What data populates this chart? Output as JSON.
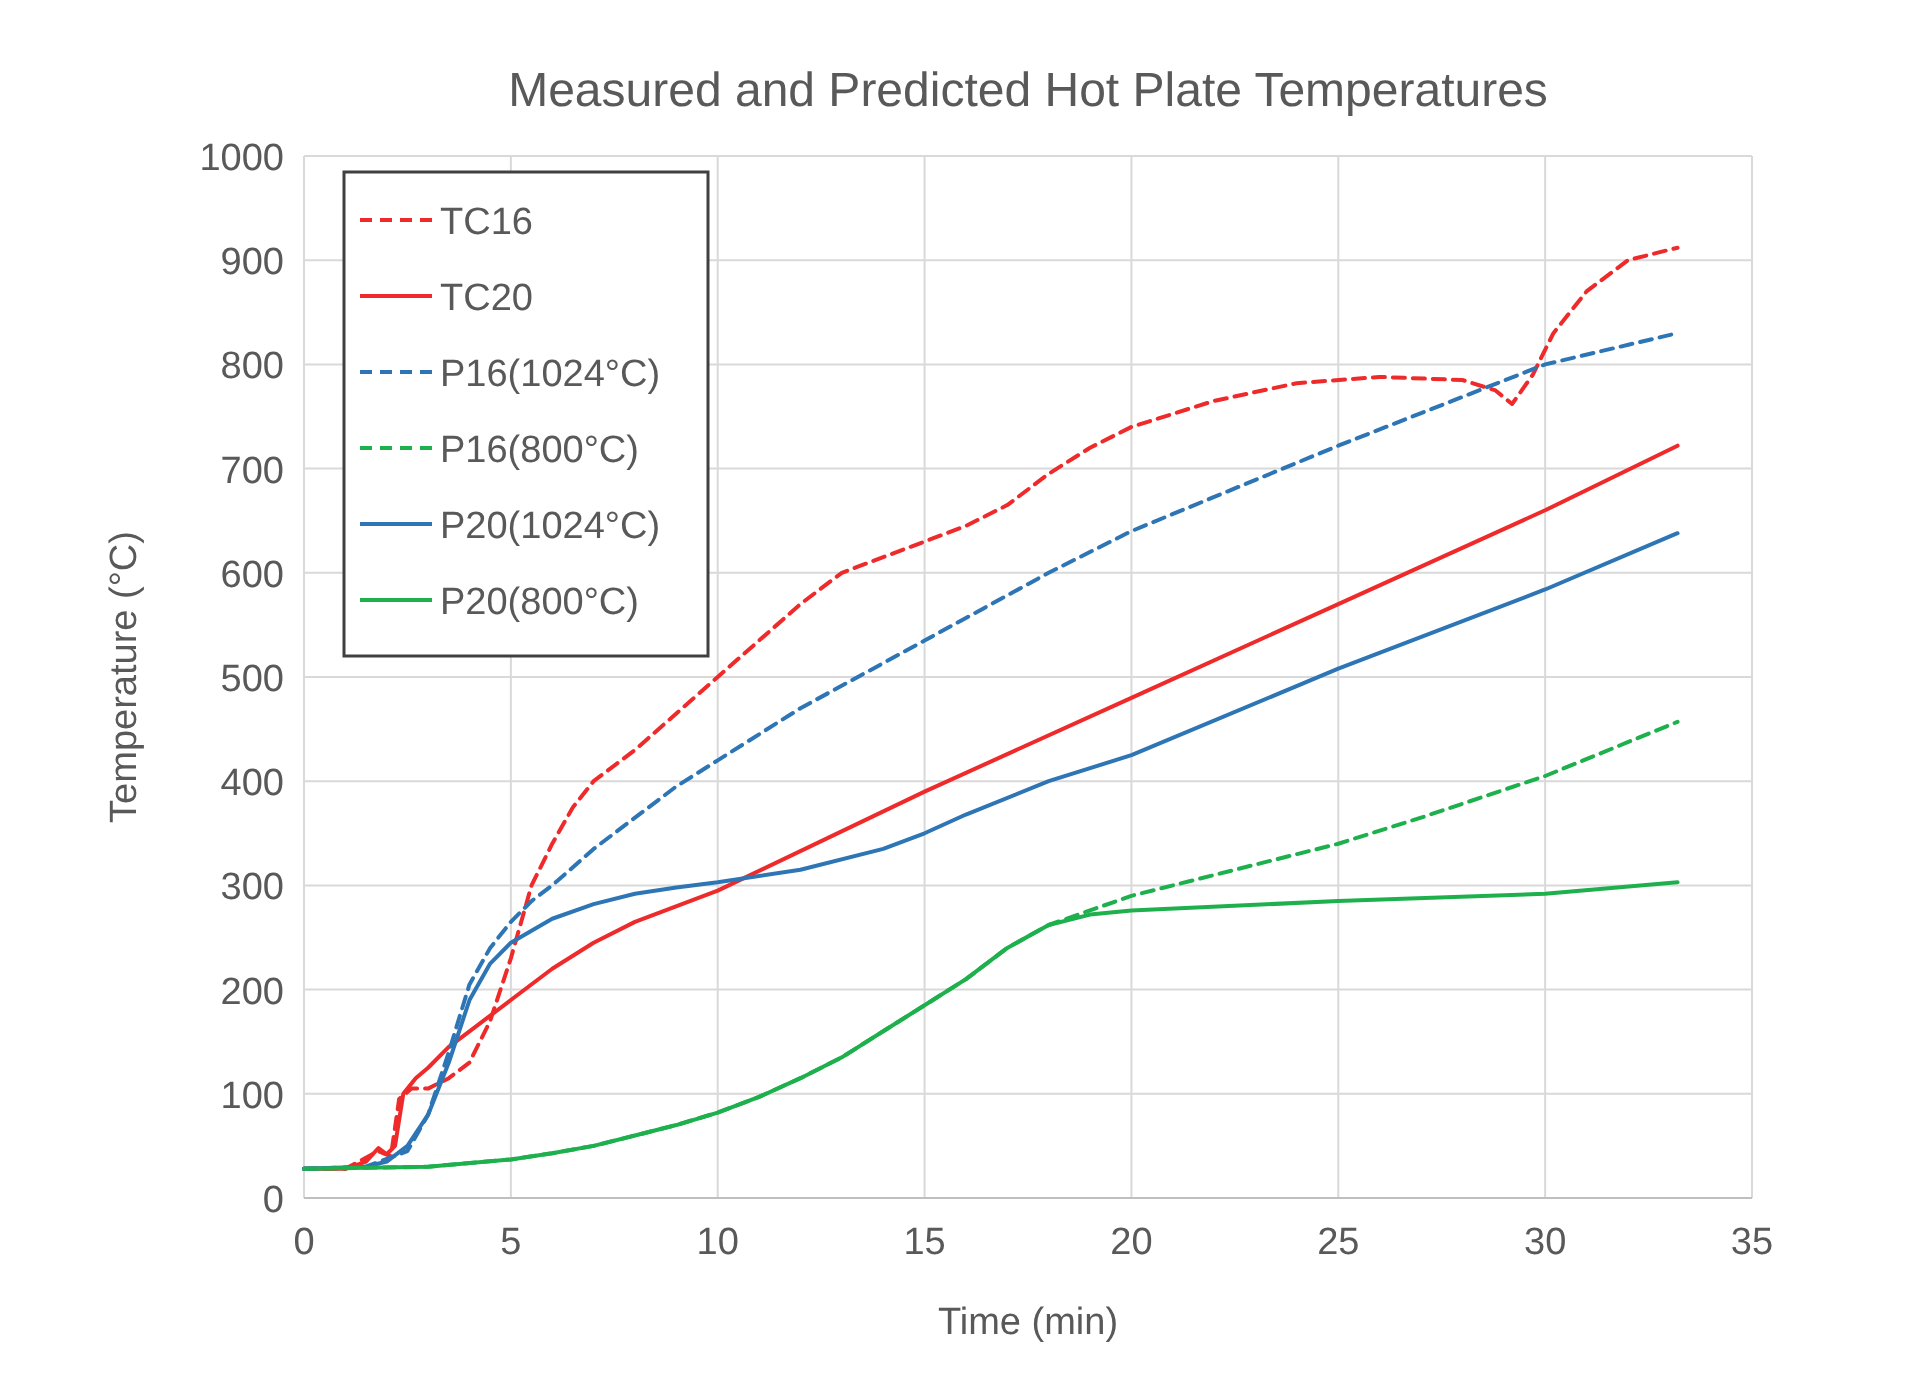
{
  "chart_data": {
    "type": "line",
    "title": "Measured and Predicted Hot Plate Temperatures",
    "xlabel": "Time (min)",
    "ylabel": "Temperature (°C)",
    "xlim": [
      0,
      35
    ],
    "ylim": [
      0,
      1000
    ],
    "xticks": [
      0,
      5,
      10,
      15,
      20,
      25,
      30,
      35
    ],
    "yticks": [
      0,
      100,
      200,
      300,
      400,
      500,
      600,
      700,
      800,
      900,
      1000
    ],
    "grid": true,
    "legend": "top left",
    "series": [
      {
        "name": "TC16",
        "color": "#ee2a2a",
        "line_style": "dashed",
        "x": [
          0,
          1,
          1.8,
          2.1,
          2.3,
          2.6,
          3,
          3.5,
          4,
          4.5,
          5,
          5.5,
          6,
          6.5,
          7,
          8,
          9,
          10,
          11,
          12,
          13,
          14,
          15,
          16,
          17,
          18,
          19,
          20,
          22,
          24,
          26,
          28,
          28.8,
          29.2,
          29.7,
          30.2,
          31,
          32,
          33.2
        ],
        "values": [
          28,
          28,
          45,
          40,
          95,
          105,
          105,
          115,
          130,
          170,
          230,
          300,
          340,
          375,
          400,
          430,
          465,
          500,
          535,
          570,
          600,
          615,
          630,
          645,
          665,
          695,
          720,
          740,
          765,
          782,
          788,
          785,
          775,
          762,
          790,
          830,
          870,
          900,
          912
        ]
      },
      {
        "name": "TC20",
        "color": "#ee2a2a",
        "line_style": "solid",
        "x": [
          0,
          1,
          1.5,
          1.8,
          2,
          2.2,
          2.4,
          2.7,
          3,
          3.5,
          4,
          5,
          6,
          7,
          8,
          10,
          15,
          20,
          25,
          30,
          33.2
        ],
        "values": [
          28,
          28,
          35,
          48,
          42,
          50,
          100,
          115,
          125,
          145,
          160,
          190,
          220,
          245,
          265,
          295,
          390,
          480,
          570,
          660,
          722
        ]
      },
      {
        "name": "P16(1024°C)",
        "color": "#2e75b6",
        "line_style": "dashed",
        "x": [
          0,
          1.5,
          2.5,
          3,
          3.5,
          4,
          4.5,
          5,
          5.5,
          6,
          7,
          8,
          9,
          10,
          12,
          15,
          18,
          20,
          25,
          30,
          33.2
        ],
        "values": [
          28,
          30,
          45,
          80,
          140,
          205,
          240,
          265,
          285,
          300,
          335,
          365,
          395,
          420,
          470,
          535,
          600,
          640,
          722,
          800,
          830
        ]
      },
      {
        "name": "P16(800°C)",
        "color": "#1fb04e",
        "line_style": "dashed",
        "x": [
          0,
          3,
          5,
          6,
          7,
          8,
          9,
          10,
          11,
          12,
          13,
          14,
          15,
          16,
          17,
          18,
          20,
          22,
          25,
          27,
          30,
          33.2
        ],
        "values": [
          28,
          30,
          37,
          43,
          50,
          60,
          70,
          82,
          97,
          115,
          135,
          160,
          185,
          210,
          240,
          262,
          290,
          310,
          340,
          365,
          405,
          457
        ]
      },
      {
        "name": "P20(1024°C)",
        "color": "#2e75b6",
        "line_style": "solid",
        "x": [
          0,
          1.5,
          2,
          2.5,
          3,
          3.5,
          4,
          4.5,
          5,
          6,
          7,
          8,
          9,
          10,
          12,
          14,
          15,
          16,
          18,
          20,
          25,
          30,
          33.2
        ],
        "values": [
          28,
          30,
          35,
          50,
          80,
          130,
          190,
          225,
          245,
          268,
          282,
          292,
          298,
          303,
          315,
          335,
          350,
          368,
          400,
          425,
          508,
          584,
          638
        ]
      },
      {
        "name": "P20(800°C)",
        "color": "#1fb04e",
        "line_style": "solid",
        "x": [
          0,
          3,
          5,
          6,
          7,
          8,
          9,
          10,
          11,
          12,
          13,
          14,
          15,
          16,
          17,
          18,
          19,
          20,
          25,
          30,
          33.2
        ],
        "values": [
          28,
          30,
          37,
          43,
          50,
          60,
          70,
          82,
          97,
          115,
          135,
          160,
          185,
          210,
          240,
          262,
          272,
          276,
          285,
          292,
          303
        ]
      }
    ]
  }
}
